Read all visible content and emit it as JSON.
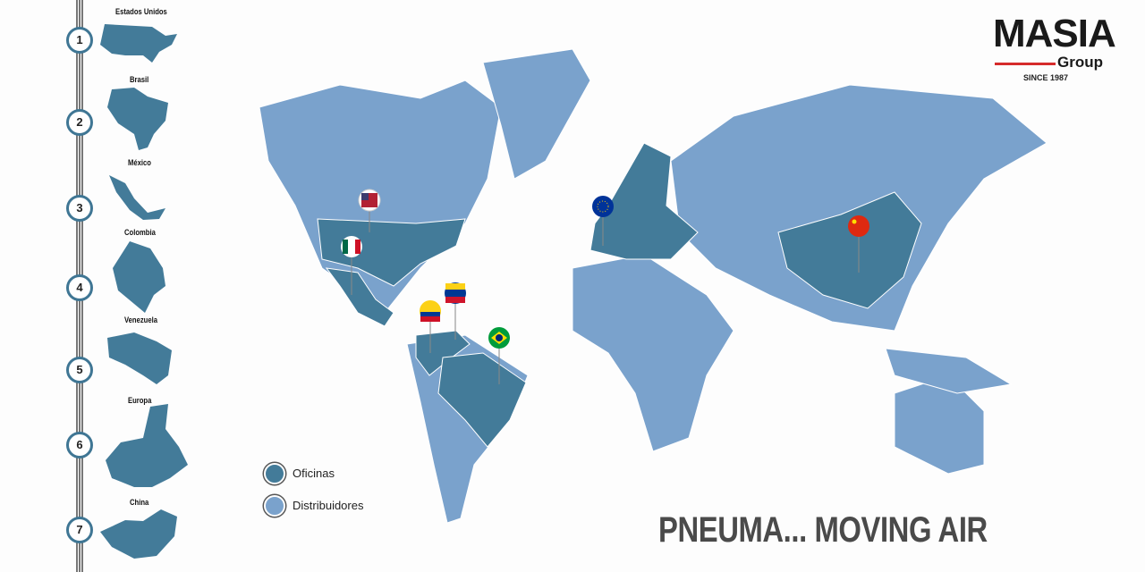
{
  "brand": {
    "name": "MASIA",
    "sub": "Group",
    "since": "SINCE 1987",
    "accent": "#d62b2b"
  },
  "colors": {
    "oficinas": "#437b99",
    "distribuidores": "#7aa2cc"
  },
  "countries": [
    {
      "num": "1",
      "name": "Estados Unidos"
    },
    {
      "num": "2",
      "name": "Brasil"
    },
    {
      "num": "3",
      "name": "México"
    },
    {
      "num": "4",
      "name": "Colombia"
    },
    {
      "num": "5",
      "name": "Venezuela"
    },
    {
      "num": "6",
      "name": "Europa"
    },
    {
      "num": "7",
      "name": "China"
    }
  ],
  "legend": {
    "oficinas": "Oficinas",
    "distribuidores": "Distribuidores"
  },
  "pins": [
    "usa-flag",
    "mexico-flag",
    "colombia-flag",
    "venezuela-flag",
    "brazil-flag",
    "eu-flag",
    "china-flag"
  ],
  "slogan": "PNEUMA... MOVING AIR"
}
